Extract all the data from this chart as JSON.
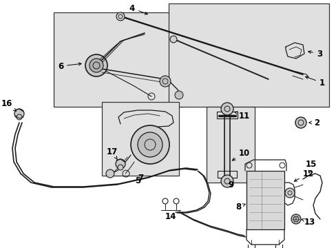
{
  "bg_color": "#ffffff",
  "fig_width": 4.89,
  "fig_height": 3.6,
  "dpi": 100,
  "line_color": "#1a1a1a",
  "label_fontsize": 8.5,
  "arrow_color": "#000000",
  "box_fill": "#e0e0e0",
  "box_edge": "#333333"
}
